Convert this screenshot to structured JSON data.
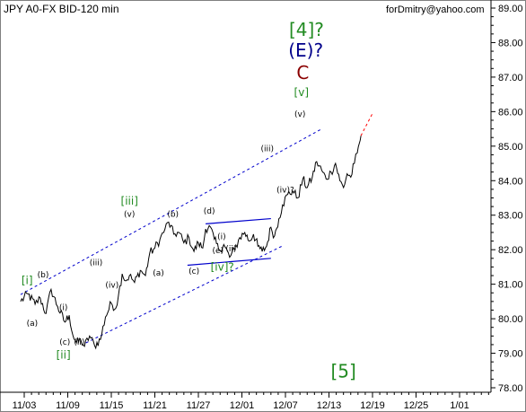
{
  "title": "JPY A0-FX BID-120 min",
  "watermark": "forDmitry@yahoo.com",
  "colors": {
    "price": "#000000",
    "channel": "#0000cc",
    "forecast": "#ff0000",
    "green": "#228b22",
    "navy": "#00008b",
    "maroon": "#8b0000"
  },
  "chart_data": {
    "type": "line",
    "title": "JPY A0-FX BID-120 min",
    "ylim": [
      78.0,
      89.0
    ],
    "yticks": [
      "89.00",
      "88.00",
      "87.00",
      "86.00",
      "85.00",
      "84.00",
      "83.00",
      "82.00",
      "81.00",
      "80.00",
      "79.00",
      "78.00"
    ],
    "xticks": [
      "11/03",
      "11/09",
      "11/15",
      "11/21",
      "11/27",
      "12/01",
      "12/07",
      "12/13",
      "12/19",
      "12/25",
      "1/01"
    ],
    "grid": false,
    "series": [
      {
        "values": [
          [
            -0.5,
            80.5
          ],
          [
            0.5,
            80.72
          ],
          [
            1.5,
            80.42
          ],
          [
            2.2,
            80.6
          ],
          [
            3,
            80.15
          ],
          [
            3.7,
            80.85
          ],
          [
            4.6,
            80.35
          ],
          [
            5.6,
            79.9
          ],
          [
            6.2,
            80.1
          ],
          [
            6.7,
            79.52
          ],
          [
            7.2,
            79.3
          ],
          [
            7.8,
            79.38
          ],
          [
            8.3,
            79.2
          ],
          [
            9,
            79.5
          ],
          [
            9.7,
            79.22
          ],
          [
            10.5,
            79.4
          ],
          [
            11.2,
            80.05
          ],
          [
            12,
            80.45
          ],
          [
            12.6,
            80.3
          ],
          [
            13,
            80.7
          ],
          [
            13.5,
            81.3
          ],
          [
            14,
            81.1
          ],
          [
            14.5,
            81.25
          ],
          [
            15.2,
            81.05
          ],
          [
            16,
            81.4
          ],
          [
            16.7,
            81.25
          ],
          [
            17.3,
            81.9
          ],
          [
            18,
            82.05
          ],
          [
            18.7,
            82.3
          ],
          [
            19.4,
            82.6
          ],
          [
            19.9,
            82.8
          ],
          [
            20.6,
            82.45
          ],
          [
            21.3,
            82.5
          ],
          [
            22,
            82.2
          ],
          [
            22.7,
            82.35
          ],
          [
            23.4,
            81.95
          ],
          [
            24,
            82.2
          ],
          [
            24.6,
            82.05
          ],
          [
            25,
            82.6
          ],
          [
            25.5,
            82.7
          ],
          [
            26.2,
            82.3
          ],
          [
            26.8,
            82.0
          ],
          [
            27.5,
            82.15
          ],
          [
            28.3,
            81.78
          ],
          [
            29,
            82.0
          ],
          [
            29.7,
            82.35
          ],
          [
            30.4,
            82.5
          ],
          [
            31,
            82.25
          ],
          [
            31.6,
            82.45
          ],
          [
            32.2,
            82.1
          ],
          [
            32.8,
            81.95
          ],
          [
            33.4,
            82.1
          ],
          [
            34,
            82.65
          ],
          [
            34.5,
            82.4
          ],
          [
            35.1,
            82.9
          ],
          [
            35.6,
            83.3
          ],
          [
            36.3,
            83.6
          ],
          [
            37,
            83.7
          ],
          [
            37.7,
            83.5
          ],
          [
            38.4,
            84.05
          ],
          [
            39,
            83.8
          ],
          [
            39.7,
            84.1
          ],
          [
            40.3,
            84.55
          ],
          [
            41,
            84.3
          ],
          [
            41.6,
            84.05
          ],
          [
            42.3,
            84.25
          ],
          [
            42.9,
            84.5
          ],
          [
            43.5,
            84.0
          ],
          [
            44,
            83.8
          ],
          [
            44.5,
            84.2
          ],
          [
            45,
            84.1
          ],
          [
            45.5,
            84.5
          ],
          [
            45.9,
            84.8
          ],
          [
            46.2,
            85.1
          ],
          [
            46.4,
            85.3
          ]
        ]
      }
    ],
    "channel_upper": [
      [
        -0.5,
        80.7
      ],
      [
        41,
        85.5
      ]
    ],
    "channel_lower": [
      [
        8.5,
        79.3
      ],
      [
        35.5,
        82.1
      ]
    ],
    "triangle_upper": [
      [
        25,
        82.75
      ],
      [
        34,
        82.9
      ]
    ],
    "triangle_lower": [
      [
        22.5,
        81.55
      ],
      [
        34,
        81.75
      ]
    ],
    "forecast": [
      [
        46.4,
        85.3
      ],
      [
        48,
        85.95
      ]
    ],
    "wave_labels": [
      {
        "text": "[i]",
        "x": 0.4,
        "y": 81.0,
        "color": "green",
        "size": "m"
      },
      {
        "text": "(a)",
        "x": 1.1,
        "y": 79.8,
        "color": "black",
        "size": "s"
      },
      {
        "text": "(b)",
        "x": 2.6,
        "y": 81.2,
        "color": "black",
        "size": "s"
      },
      {
        "text": "(i)",
        "x": 5.4,
        "y": 80.25,
        "color": "black",
        "size": "s"
      },
      {
        "text": "(c)",
        "x": 5.6,
        "y": 79.25,
        "color": "black",
        "size": "s"
      },
      {
        "text": "[ii]",
        "x": 5.4,
        "y": 78.85,
        "color": "green",
        "size": "m"
      },
      {
        "text": "(ii)",
        "x": 7.6,
        "y": 79.25,
        "color": "black",
        "size": "s"
      },
      {
        "text": "(iii)",
        "x": 9.9,
        "y": 81.55,
        "color": "black",
        "size": "s"
      },
      {
        "text": "(iv)",
        "x": 12.1,
        "y": 80.9,
        "color": "black",
        "size": "s"
      },
      {
        "text": "(v)",
        "x": 14.5,
        "y": 82.95,
        "color": "black",
        "size": "s"
      },
      {
        "text": "[iii]",
        "x": 14.5,
        "y": 83.3,
        "color": "green",
        "size": "m"
      },
      {
        "text": "(a)",
        "x": 18.5,
        "y": 81.25,
        "color": "black",
        "size": "s"
      },
      {
        "text": "(b)",
        "x": 20.5,
        "y": 82.95,
        "color": "black",
        "size": "s"
      },
      {
        "text": "(c)",
        "x": 23.4,
        "y": 81.3,
        "color": "black",
        "size": "s"
      },
      {
        "text": "(d)",
        "x": 25.5,
        "y": 83.05,
        "color": "black",
        "size": "s"
      },
      {
        "text": "(i)",
        "x": 27.2,
        "y": 82.3,
        "color": "black",
        "size": "s"
      },
      {
        "text": "(e)",
        "x": 26.7,
        "y": 81.9,
        "color": "black",
        "size": "s"
      },
      {
        "text": "(ii)",
        "x": 28.5,
        "y": 81.95,
        "color": "black",
        "size": "s"
      },
      {
        "text": "[iv]?",
        "x": 27.3,
        "y": 81.4,
        "color": "green",
        "size": "m"
      },
      {
        "text": "(iii)",
        "x": 33.5,
        "y": 84.85,
        "color": "black",
        "size": "s"
      },
      {
        "text": "(iv)?",
        "x": 36.0,
        "y": 83.65,
        "color": "black",
        "size": "s"
      },
      {
        "text": "(v)",
        "x": 38.0,
        "y": 85.85,
        "color": "black",
        "size": "s"
      },
      {
        "text": "[v]",
        "x": 38.2,
        "y": 86.45,
        "color": "green",
        "size": "m"
      },
      {
        "text": "C",
        "x": 38.4,
        "y": 86.95,
        "color": "maroon",
        "size": "l"
      },
      {
        "text": "(E)?",
        "x": 38.8,
        "y": 87.6,
        "color": "navy",
        "size": "l"
      },
      {
        "text": "[4]?",
        "x": 38.9,
        "y": 88.2,
        "color": "green",
        "size": "l"
      },
      {
        "text": "[5]",
        "x": 44.0,
        "y": 78.3,
        "color": "green",
        "size": "l"
      }
    ]
  }
}
